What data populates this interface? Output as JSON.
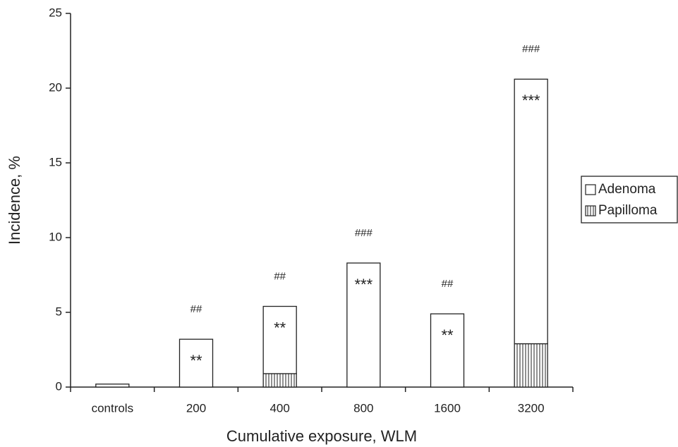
{
  "chart_data": {
    "type": "stacked_bar",
    "x_label": "Cumulative exposure, WLM",
    "y_label": "Incidence, %",
    "categories": [
      "controls",
      "200",
      "400",
      "800",
      "1600",
      "3200"
    ],
    "series": [
      {
        "name": "Papilloma",
        "color": "hatch",
        "values": [
          0,
          0,
          0.9,
          0,
          0,
          2.9
        ]
      },
      {
        "name": "Adenoma",
        "color": "#ffffff",
        "values": [
          0.2,
          3.2,
          4.5,
          8.3,
          4.9,
          17.7
        ]
      }
    ],
    "annotations_above": [
      null,
      "##",
      "##",
      "###",
      "##",
      "###"
    ],
    "annotations_inside": [
      null,
      "**",
      "**",
      "***",
      "**",
      "***"
    ],
    "ylim": [
      0,
      25
    ],
    "yticks": [
      0,
      5,
      10,
      15,
      20,
      25
    ],
    "legend": "right"
  }
}
